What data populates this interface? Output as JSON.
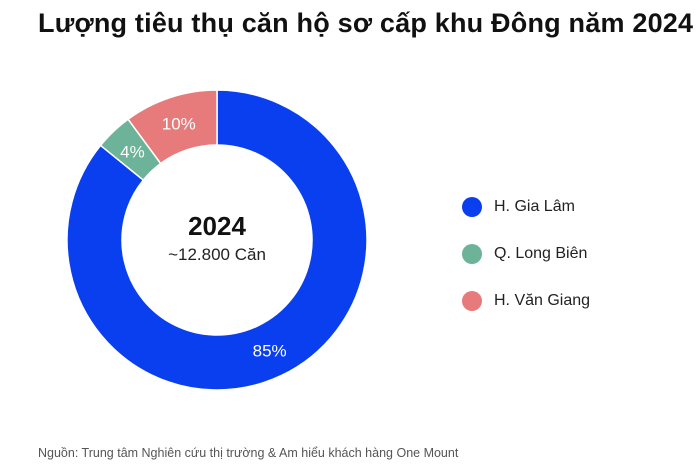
{
  "chart_data": {
    "type": "pie",
    "donut": true,
    "title": "Lượng tiêu thụ căn hộ sơ cấp khu Đông năm 2024",
    "center_title": "2024",
    "center_subtitle": "~12.800 Căn",
    "slices": [
      {
        "label": "H. Gia Lâm",
        "value": 85,
        "display": "85%",
        "color": "#0A3FF0"
      },
      {
        "label": "Q. Long Biên",
        "value": 4,
        "display": "4%",
        "color": "#6DB39A"
      },
      {
        "label": "H. Văn Giang",
        "value": 10,
        "display": "10%",
        "color": "#E77B7B"
      }
    ],
    "legend_placement": "right",
    "source": "Nguồn: Trung tâm Nghiên cứu thị trường & Am hiểu khách hàng One Mount"
  }
}
